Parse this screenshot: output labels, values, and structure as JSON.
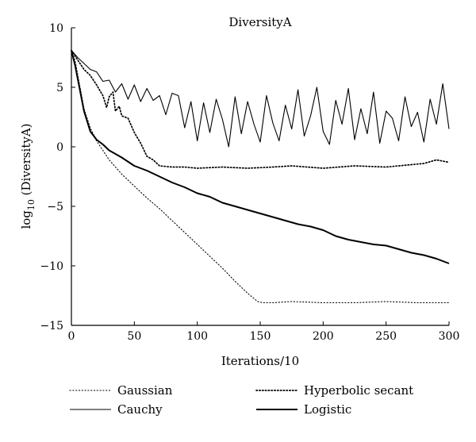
{
  "chart_data": {
    "type": "line",
    "title": "DiversityA",
    "xlabel": "Iterations/10",
    "ylabel_prefix": "log",
    "ylabel_sub": "10",
    "ylabel_suffix": " (DiversityA)",
    "xlim": [
      0,
      300
    ],
    "ylim": [
      -15,
      10
    ],
    "xticks": [
      0,
      50,
      100,
      150,
      200,
      250,
      300
    ],
    "yticks": [
      -15,
      -10,
      -5,
      0,
      5,
      10
    ],
    "xtick_labels": [
      "0",
      "50",
      "100",
      "150",
      "200",
      "250",
      "300"
    ],
    "ytick_labels": [
      "−15",
      "−10",
      "−5",
      "0",
      "5",
      "10"
    ],
    "grid": false,
    "legend_position": "bottom",
    "series": [
      {
        "name": "Gaussian",
        "style": "dotted-thin",
        "x": [
          0,
          3,
          6,
          10,
          15,
          20,
          30,
          40,
          50,
          60,
          70,
          80,
          90,
          100,
          110,
          120,
          130,
          140,
          148,
          152,
          160,
          175,
          200,
          225,
          250,
          275,
          300
        ],
        "y": [
          8.1,
          7.2,
          5.5,
          3.2,
          1.6,
          0.5,
          -1.1,
          -2.3,
          -3.3,
          -4.3,
          -5.2,
          -6.2,
          -7.2,
          -8.2,
          -9.2,
          -10.2,
          -11.3,
          -12.3,
          -13.0,
          -13.1,
          -13.1,
          -13.0,
          -13.1,
          -13.1,
          -13.0,
          -13.1,
          -13.1
        ]
      },
      {
        "name": "Hyperbolic secant",
        "style": "dotted-thick",
        "x": [
          0,
          5,
          10,
          15,
          20,
          25,
          28,
          30,
          33,
          35,
          38,
          40,
          45,
          50,
          55,
          60,
          65,
          70,
          80,
          90,
          100,
          120,
          140,
          160,
          175,
          200,
          225,
          250,
          270,
          280,
          290,
          300
        ],
        "y": [
          8.1,
          7.3,
          6.5,
          6.0,
          5.2,
          4.3,
          3.3,
          4.2,
          4.6,
          3.0,
          3.4,
          2.6,
          2.4,
          1.2,
          0.3,
          -0.8,
          -1.1,
          -1.6,
          -1.7,
          -1.7,
          -1.8,
          -1.7,
          -1.8,
          -1.7,
          -1.6,
          -1.8,
          -1.6,
          -1.7,
          -1.5,
          -1.4,
          -1.1,
          -1.3
        ]
      },
      {
        "name": "Cauchy",
        "style": "solid-thin",
        "x": [
          0,
          5,
          10,
          15,
          20,
          25,
          30,
          35,
          40,
          45,
          50,
          55,
          60,
          65,
          70,
          75,
          80,
          85,
          90,
          95,
          100,
          105,
          110,
          115,
          120,
          125,
          130,
          135,
          140,
          145,
          150,
          155,
          160,
          165,
          170,
          175,
          180,
          185,
          190,
          195,
          200,
          205,
          210,
          215,
          220,
          225,
          230,
          235,
          240,
          245,
          250,
          255,
          260,
          265,
          270,
          275,
          280,
          285,
          290,
          295,
          300
        ],
        "y": [
          8.1,
          7.5,
          7.0,
          6.5,
          6.3,
          5.5,
          5.6,
          4.6,
          5.3,
          4.0,
          5.2,
          3.8,
          4.9,
          3.9,
          4.3,
          2.7,
          4.5,
          4.3,
          1.6,
          3.8,
          0.5,
          3.7,
          1.2,
          4.0,
          2.3,
          0.0,
          4.2,
          1.1,
          3.8,
          1.9,
          0.4,
          4.3,
          2.0,
          0.5,
          3.5,
          1.5,
          4.8,
          0.9,
          2.6,
          5.0,
          1.3,
          0.2,
          3.9,
          1.9,
          4.9,
          0.6,
          3.2,
          1.1,
          4.6,
          0.3,
          3.0,
          2.4,
          0.5,
          4.2,
          1.7,
          2.9,
          0.4,
          4.0,
          1.9,
          5.3,
          1.5
        ]
      },
      {
        "name": "Logistic",
        "style": "solid-thick",
        "x": [
          0,
          3,
          6,
          10,
          15,
          20,
          25,
          30,
          40,
          50,
          60,
          70,
          80,
          90,
          100,
          110,
          120,
          130,
          140,
          150,
          160,
          170,
          180,
          190,
          200,
          210,
          220,
          230,
          240,
          250,
          260,
          270,
          280,
          290,
          300
        ],
        "y": [
          8.1,
          6.8,
          5.2,
          3.0,
          1.3,
          0.6,
          0.2,
          -0.3,
          -0.9,
          -1.6,
          -2.0,
          -2.5,
          -3.0,
          -3.4,
          -3.9,
          -4.2,
          -4.7,
          -5.0,
          -5.3,
          -5.6,
          -5.9,
          -6.2,
          -6.5,
          -6.7,
          -7.0,
          -7.5,
          -7.8,
          -8.0,
          -8.2,
          -8.3,
          -8.6,
          -8.9,
          -9.1,
          -9.4,
          -9.8
        ]
      }
    ]
  }
}
